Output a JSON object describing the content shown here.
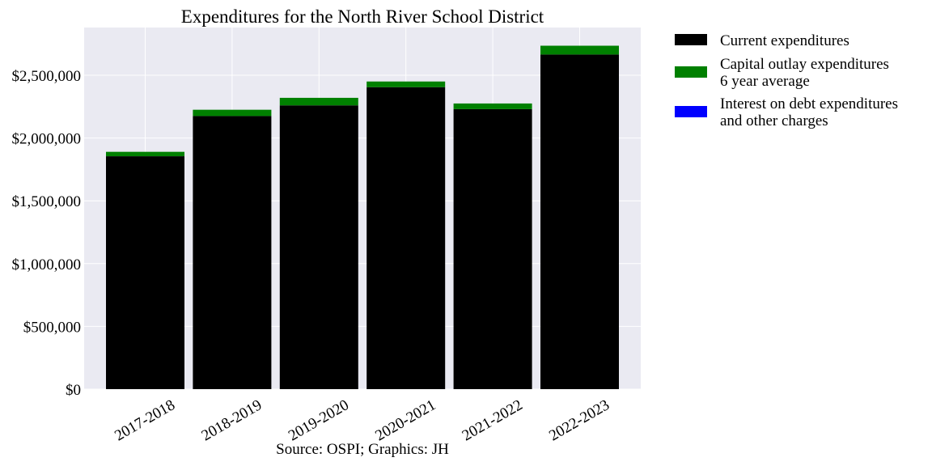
{
  "chart_data": {
    "type": "bar",
    "stacked": true,
    "title": "Expenditures for the North River School District",
    "xlabel": "Source: OSPI; Graphics: JH",
    "ylabel": "",
    "categories": [
      "2017-2018",
      "2018-2019",
      "2019-2020",
      "2020-2021",
      "2021-2022",
      "2022-2023"
    ],
    "series": [
      {
        "name": "Current expenditures",
        "color": "#000000",
        "values": [
          1855000,
          2175000,
          2260000,
          2405000,
          2230000,
          2665000
        ]
      },
      {
        "name": "Capital outlay expenditures\n6 year average",
        "color": "#008000",
        "values": [
          35000,
          50000,
          60000,
          45000,
          45000,
          70000
        ]
      },
      {
        "name": "Interest on debt expenditures\nand other charges",
        "color": "#0000ff",
        "values": [
          0,
          0,
          0,
          0,
          0,
          0
        ]
      }
    ],
    "ylim": [
      0,
      2880000
    ],
    "yticks": [
      0,
      500000,
      1000000,
      1500000,
      2000000,
      2500000
    ],
    "ytick_labels": [
      "$0",
      "$500,000",
      "$1,000,000",
      "$1,500,000",
      "$2,000,000",
      "$2,500,000"
    ],
    "grid": true,
    "legend_position": "outside-right",
    "background_color": "#eaeaf2"
  }
}
